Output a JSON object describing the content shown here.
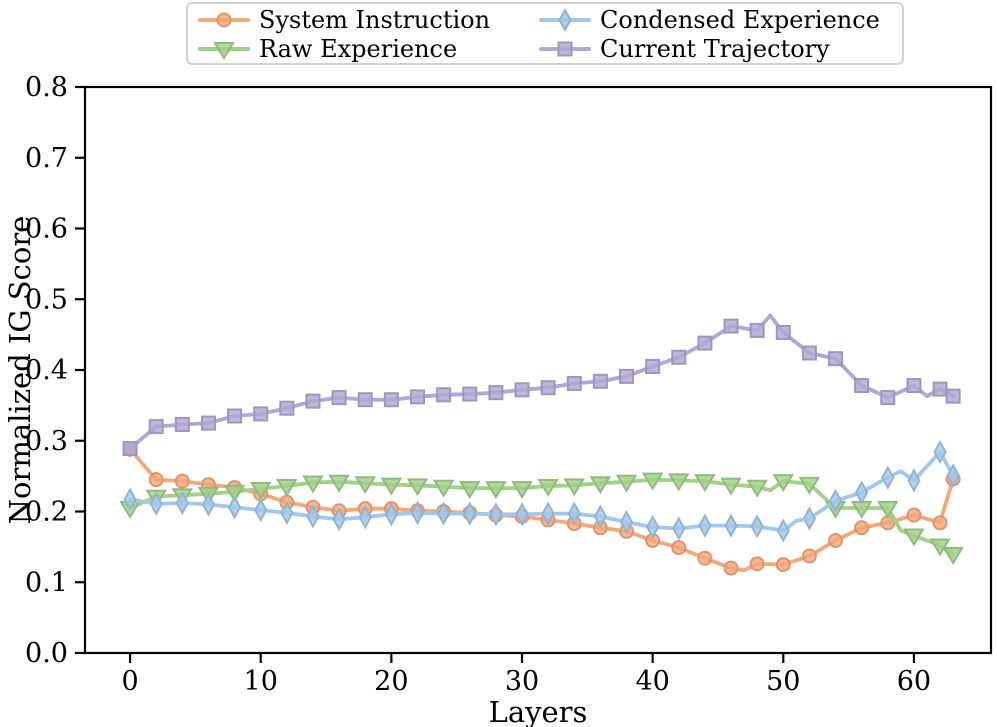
{
  "figure": {
    "background": "#ffffff",
    "spine_color": "#000000",
    "legend_border_color": "#cccccc"
  },
  "chart_data": {
    "type": "line",
    "title": "",
    "xlabel": "Layers",
    "ylabel": "Normalized IG Score",
    "xlim": [
      -3.45,
      65.9
    ],
    "ylim": [
      0.0,
      0.8
    ],
    "x_ticks": [
      0,
      10,
      20,
      30,
      40,
      50,
      60
    ],
    "x_tick_labels": [
      "0",
      "10",
      "20",
      "30",
      "40",
      "50",
      "60"
    ],
    "y_ticks": [
      0.0,
      0.1,
      0.2,
      0.3,
      0.4,
      0.5,
      0.6,
      0.7,
      0.8
    ],
    "y_tick_labels": [
      "0.0",
      "0.1",
      "0.2",
      "0.3",
      "0.4",
      "0.5",
      "0.6",
      "0.7",
      "0.8"
    ],
    "grid": false,
    "legend_position": "top-center-outside, 2 columns",
    "legend_columns_order": [
      [
        "System Instruction",
        "Raw Experience"
      ],
      [
        "Condensed Experience",
        "Current Trajectory"
      ]
    ],
    "markevery": 2,
    "marker_note": "markers at even layers plus final layer 63",
    "series": [
      {
        "name": "System Instruction",
        "color": "#F4A77B",
        "marker": "circle",
        "x": [
          0,
          2,
          4,
          6,
          8,
          10,
          12,
          14,
          16,
          18,
          20,
          22,
          24,
          26,
          28,
          30,
          32,
          34,
          36,
          38,
          40,
          42,
          44,
          46,
          47,
          48,
          50,
          52,
          54,
          56,
          58,
          60,
          62,
          63
        ],
        "y": [
          0.288,
          0.245,
          0.243,
          0.238,
          0.234,
          0.225,
          0.213,
          0.206,
          0.201,
          0.204,
          0.204,
          0.201,
          0.2,
          0.198,
          0.195,
          0.193,
          0.188,
          0.183,
          0.177,
          0.172,
          0.159,
          0.149,
          0.134,
          0.12,
          0.117,
          0.126,
          0.125,
          0.137,
          0.159,
          0.177,
          0.184,
          0.195,
          0.184,
          0.246
        ]
      },
      {
        "name": "Raw Experience",
        "color": "#A1D089",
        "marker": "triangle-down",
        "x": [
          0,
          2,
          4,
          6,
          8,
          10,
          12,
          14,
          16,
          18,
          20,
          22,
          24,
          26,
          28,
          30,
          32,
          34,
          36,
          38,
          40,
          42,
          44,
          46,
          48,
          49,
          50,
          52,
          54,
          56,
          58,
          59,
          60,
          62,
          63
        ],
        "y": [
          0.205,
          0.221,
          0.223,
          0.225,
          0.228,
          0.232,
          0.236,
          0.241,
          0.242,
          0.24,
          0.238,
          0.237,
          0.235,
          0.233,
          0.233,
          0.233,
          0.236,
          0.237,
          0.24,
          0.242,
          0.245,
          0.244,
          0.243,
          0.238,
          0.235,
          0.23,
          0.243,
          0.239,
          0.205,
          0.205,
          0.205,
          0.173,
          0.166,
          0.152,
          0.14
        ]
      },
      {
        "name": "Condensed Experience",
        "color": "#A2C8E9",
        "marker": "thin-diamond",
        "x": [
          0,
          2,
          4,
          6,
          8,
          10,
          12,
          14,
          16,
          18,
          20,
          22,
          24,
          26,
          28,
          30,
          32,
          34,
          36,
          38,
          40,
          42,
          44,
          46,
          48,
          50,
          51,
          52,
          54,
          56,
          58,
          59,
          60,
          62,
          63
        ],
        "y": [
          0.217,
          0.211,
          0.212,
          0.21,
          0.206,
          0.202,
          0.198,
          0.193,
          0.189,
          0.192,
          0.196,
          0.198,
          0.197,
          0.197,
          0.196,
          0.196,
          0.197,
          0.197,
          0.193,
          0.185,
          0.178,
          0.176,
          0.18,
          0.18,
          0.179,
          0.173,
          0.187,
          0.19,
          0.215,
          0.227,
          0.248,
          0.257,
          0.244,
          0.284,
          0.251
        ]
      },
      {
        "name": "Current Trajectory",
        "color": "#B1A7D2",
        "marker": "square",
        "x": [
          0,
          2,
          4,
          6,
          8,
          10,
          12,
          14,
          16,
          18,
          20,
          22,
          24,
          26,
          28,
          30,
          32,
          34,
          36,
          38,
          40,
          42,
          44,
          46,
          48,
          49,
          50,
          52,
          54,
          56,
          58,
          60,
          61,
          62,
          63
        ],
        "y": [
          0.289,
          0.32,
          0.323,
          0.325,
          0.335,
          0.338,
          0.346,
          0.356,
          0.361,
          0.358,
          0.358,
          0.362,
          0.365,
          0.366,
          0.368,
          0.372,
          0.375,
          0.381,
          0.384,
          0.391,
          0.405,
          0.418,
          0.438,
          0.462,
          0.456,
          0.477,
          0.453,
          0.424,
          0.416,
          0.378,
          0.361,
          0.378,
          0.363,
          0.373,
          0.363
        ]
      }
    ]
  }
}
